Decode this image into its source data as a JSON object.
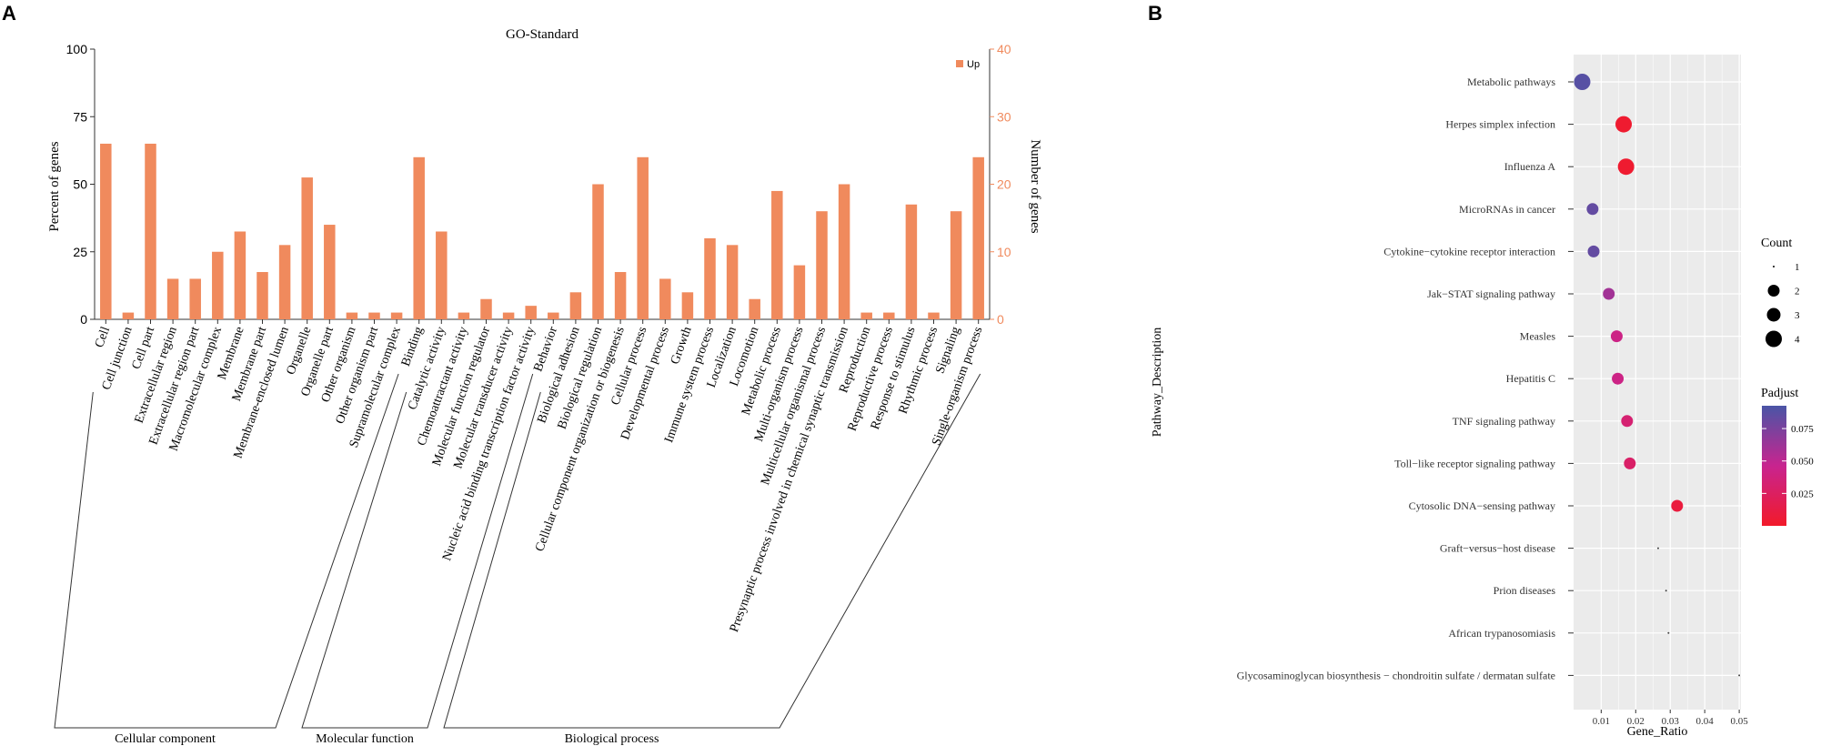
{
  "panel_a_label": "A",
  "panel_b_label": "B",
  "chart_data": [
    {
      "type": "bar",
      "title": "GO-Standard",
      "ylabel": "Percent of genes",
      "y2label": "Number of genes",
      "ylim": [
        0,
        100
      ],
      "y2lim": [
        0,
        40
      ],
      "yticks": [
        "0",
        "25",
        "50",
        "75",
        "100"
      ],
      "y2ticks": [
        "0",
        "10",
        "20",
        "30",
        "40"
      ],
      "legend": {
        "label": "Up",
        "position": "top-right"
      },
      "bar_color": "#F08A5D",
      "accent_color": "#F08A5D",
      "categories": [
        "Cell",
        "Cell junction",
        "Cell part",
        "Extracellular region",
        "Extracellular region part",
        "Macromolecular complex",
        "Membrane",
        "Membrane part",
        "Membrane-enclosed lumen",
        "Organelle",
        "Organelle part",
        "Other organism",
        "Other organism part",
        "Supramolecular complex",
        "Binding",
        "Catalytic activity",
        "Chemoattractant activity",
        "Molecular function regulator",
        "Molecular transducer activity",
        "Nucleic acid binding transcription factor activity",
        "Behavior",
        "Biological adhesion",
        "Biological regulation",
        "Cellular component organization or biogenesis",
        "Cellular process",
        "Developmental process",
        "Growth",
        "Immune system process",
        "Localization",
        "Locomotion",
        "Metabolic process",
        "Multi-organism process",
        "Multicellular organismal process",
        "Presynaptic process involved in chemical synaptic transmission",
        "Reproduction",
        "Reproductive process",
        "Response to stimulus",
        "Rhythmic process",
        "Signaling",
        "Single-organism process"
      ],
      "values": [
        65,
        2.5,
        65,
        15,
        15,
        25,
        32.5,
        17.5,
        27.5,
        52.5,
        35,
        2.5,
        2.5,
        2.5,
        60,
        32.5,
        2.5,
        7.5,
        2.5,
        5,
        2.5,
        10,
        50,
        17.5,
        60,
        15,
        10,
        30,
        27.5,
        7.5,
        47.5,
        20,
        40,
        50,
        2.5,
        2.5,
        42.5,
        2.5,
        40,
        60
      ],
      "groups": [
        {
          "name": "Cellular component",
          "start": 0,
          "end": 13
        },
        {
          "name": "Molecular function",
          "start": 14,
          "end": 19
        },
        {
          "name": "Biological process",
          "start": 20,
          "end": 39
        }
      ]
    },
    {
      "type": "scatter",
      "xlabel": "Gene_Ratio",
      "ylabel": "Pathway_Description",
      "xlim": [
        0.002,
        0.0505
      ],
      "xticks": [
        0.01,
        0.02,
        0.03,
        0.04,
        0.05
      ],
      "xtick_labels": [
        "0.01",
        "0.02",
        "0.03",
        "0.04",
        "0.05"
      ],
      "pathways": [
        {
          "name": "Metabolic pathways",
          "x": 0.0045,
          "count": 4,
          "padjust": 0.095
        },
        {
          "name": "Herpes simplex infection",
          "x": 0.0165,
          "count": 4,
          "padjust": 0.003
        },
        {
          "name": "Influenza A",
          "x": 0.0172,
          "count": 4,
          "padjust": 0.003
        },
        {
          "name": "MicroRNAs in cancer",
          "x": 0.0075,
          "count": 2,
          "padjust": 0.09
        },
        {
          "name": "Cytokine−cytokine receptor interaction",
          "x": 0.0078,
          "count": 2,
          "padjust": 0.09
        },
        {
          "name": "Jak−STAT signaling pathway",
          "x": 0.0122,
          "count": 2,
          "padjust": 0.065
        },
        {
          "name": "Measles",
          "x": 0.0145,
          "count": 2,
          "padjust": 0.045
        },
        {
          "name": "Hepatitis C",
          "x": 0.0148,
          "count": 2,
          "padjust": 0.045
        },
        {
          "name": "TNF signaling pathway",
          "x": 0.0175,
          "count": 2,
          "padjust": 0.035
        },
        {
          "name": "Toll−like receptor signaling pathway",
          "x": 0.0183,
          "count": 2,
          "padjust": 0.03
        },
        {
          "name": "Cytosolic DNA−sensing pathway",
          "x": 0.032,
          "count": 2,
          "padjust": 0.01
        },
        {
          "name": "Graft−versus−host disease",
          "x": 0.0265,
          "count": 1,
          "padjust": 0.05
        },
        {
          "name": "Prion diseases",
          "x": 0.0288,
          "count": 1,
          "padjust": 0.05
        },
        {
          "name": "African trypanosomiasis",
          "x": 0.0295,
          "count": 1,
          "padjust": 0.05
        },
        {
          "name": "Glycosaminoglycan biosynthesis − chondroitin sulfate / dermatan sulfate",
          "x": 0.05,
          "count": 1,
          "padjust": 0.05
        }
      ],
      "legend_count": {
        "title": "Count",
        "values": [
          1,
          2,
          3,
          4
        ],
        "labels": [
          "1",
          "2",
          "3",
          "4"
        ]
      },
      "legend_padjust": {
        "title": "Padjust",
        "range": [
          0,
          0.1
        ],
        "ticks": [
          0.025,
          0.05,
          0.075
        ],
        "tick_labels": [
          "0.025",
          "0.050",
          "0.075"
        ],
        "color_low": "#F21A2A",
        "color_mid": "#C8248F",
        "color_high": "#4A55A6"
      },
      "panel_background": "#EBEBEB"
    }
  ]
}
